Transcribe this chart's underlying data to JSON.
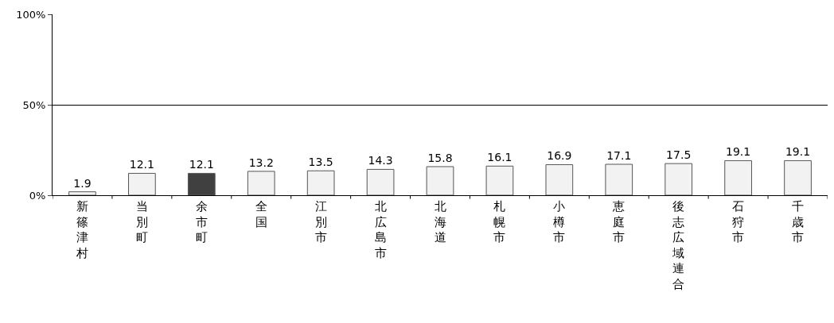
{
  "chart_data": {
    "type": "bar",
    "categories": [
      "新篠津村",
      "当別町",
      "余市町",
      "全国",
      "江別市",
      "北広島市",
      "北海道",
      "札幌市",
      "小樽市",
      "恵庭市",
      "後志広域連合",
      "石狩市",
      "千歳市"
    ],
    "values": [
      1.9,
      12.1,
      12.1,
      13.2,
      13.5,
      14.3,
      15.8,
      16.1,
      16.9,
      17.1,
      17.5,
      19.1,
      19.1
    ],
    "colors": [
      "#f2f2f2",
      "#f2f2f2",
      "#404040",
      "#f2f2f2",
      "#f2f2f2",
      "#f2f2f2",
      "#f2f2f2",
      "#f2f2f2",
      "#f2f2f2",
      "#f2f2f2",
      "#f2f2f2",
      "#f2f2f2",
      "#f2f2f2"
    ],
    "ylim": [
      0,
      100
    ],
    "yticks": [
      {
        "value": 0,
        "label": "0%"
      },
      {
        "value": 50,
        "label": "50%"
      },
      {
        "value": 100,
        "label": "100%"
      }
    ],
    "grid": "y",
    "data_labels": true,
    "legend": false
  }
}
